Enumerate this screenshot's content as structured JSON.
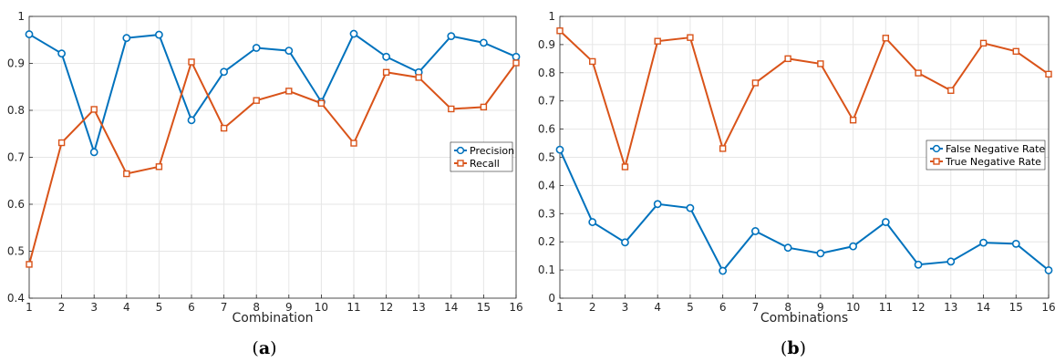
{
  "chart_data": [
    {
      "type": "line",
      "caption_open": "(",
      "caption_letter": "a",
      "caption_close": ")",
      "xlabel": "Combination",
      "ylabel": "",
      "xlim": [
        1,
        16
      ],
      "ylim": [
        0.4,
        1
      ],
      "x": [
        1,
        2,
        3,
        4,
        5,
        6,
        7,
        8,
        9,
        10,
        11,
        12,
        13,
        14,
        15,
        16
      ],
      "xticks": [
        1,
        2,
        3,
        4,
        5,
        6,
        7,
        8,
        9,
        10,
        11,
        12,
        13,
        14,
        15,
        16
      ],
      "yticks": [
        0.4,
        0.5,
        0.6,
        0.7,
        0.8,
        0.9,
        1
      ],
      "yticklabels": [
        "0.4",
        "0.5",
        "0.6",
        "0.7",
        "0.8",
        "0.9",
        "1"
      ],
      "grid": true,
      "legend_position": "right",
      "series": [
        {
          "name": "Precision",
          "color": "#0072BD",
          "marker": "circle",
          "values": [
            0.962,
            0.921,
            0.711,
            0.954,
            0.961,
            0.779,
            0.882,
            0.933,
            0.927,
            0.818,
            0.963,
            0.914,
            0.881,
            0.958,
            0.944,
            0.914
          ]
        },
        {
          "name": "Recall",
          "color": "#D95319",
          "marker": "square",
          "values": [
            0.472,
            0.731,
            0.802,
            0.665,
            0.68,
            0.903,
            0.762,
            0.821,
            0.841,
            0.815,
            0.73,
            0.881,
            0.87,
            0.803,
            0.807,
            0.901
          ]
        }
      ]
    },
    {
      "type": "line",
      "caption_open": "(",
      "caption_letter": "b",
      "caption_close": ")",
      "xlabel": "Combinations",
      "ylabel": "",
      "xlim": [
        1,
        16
      ],
      "ylim": [
        0,
        1
      ],
      "x": [
        1,
        2,
        3,
        4,
        5,
        6,
        7,
        8,
        9,
        10,
        11,
        12,
        13,
        14,
        15,
        16
      ],
      "xticks": [
        1,
        2,
        3,
        4,
        5,
        6,
        7,
        8,
        9,
        10,
        11,
        12,
        13,
        14,
        15,
        16
      ],
      "yticks": [
        0,
        0.1,
        0.2,
        0.3,
        0.4,
        0.5,
        0.6,
        0.7,
        0.8,
        0.9,
        1
      ],
      "yticklabels": [
        "0",
        "0.1",
        "0.2",
        "0.3",
        "0.4",
        "0.5",
        "0.6",
        "0.7",
        "0.8",
        "0.9",
        "1"
      ],
      "grid": true,
      "legend_position": "right",
      "series": [
        {
          "name": "False Negative Rate",
          "color": "#0072BD",
          "marker": "circle",
          "values": [
            0.527,
            0.27,
            0.198,
            0.334,
            0.32,
            0.097,
            0.238,
            0.179,
            0.159,
            0.184,
            0.27,
            0.119,
            0.13,
            0.197,
            0.193,
            0.099
          ]
        },
        {
          "name": "True Negative Rate",
          "color": "#D95319",
          "marker": "square",
          "values": [
            0.949,
            0.84,
            0.466,
            0.912,
            0.925,
            0.531,
            0.764,
            0.85,
            0.832,
            0.632,
            0.923,
            0.799,
            0.737,
            0.905,
            0.876,
            0.795
          ]
        }
      ]
    }
  ]
}
